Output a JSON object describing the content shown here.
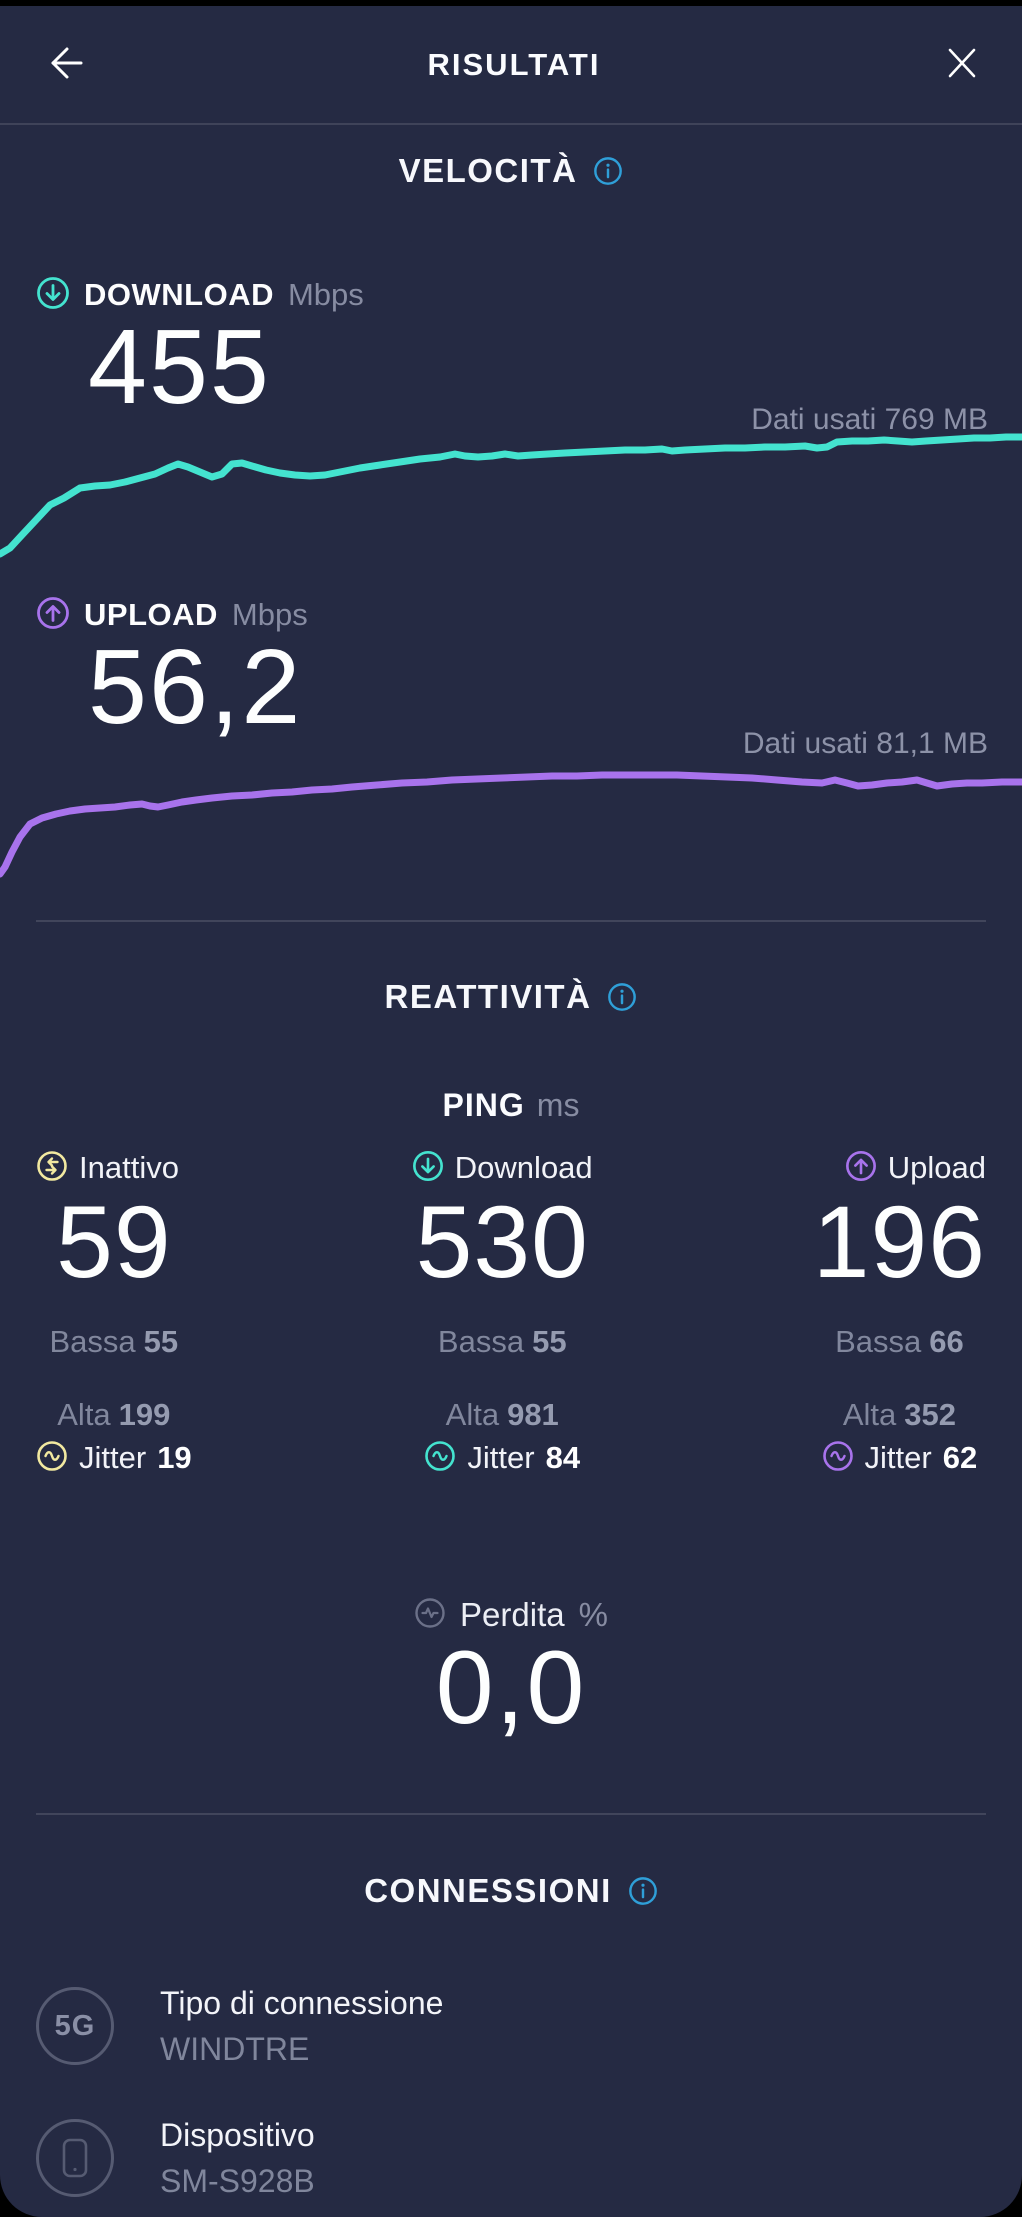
{
  "header": {
    "title": "RISULTATI"
  },
  "velocita": {
    "heading": "VELOCITÀ",
    "download": {
      "label": "DOWNLOAD",
      "unit": "Mbps",
      "value": "455",
      "data_used": "Dati usati 769 MB"
    },
    "upload": {
      "label": "UPLOAD",
      "unit": "Mbps",
      "value": "56,2",
      "data_used": "Dati usati 81,1 MB"
    }
  },
  "reattivita": {
    "heading": "REATTIVITÀ",
    "ping_label": "PING",
    "ping_unit": "ms",
    "columns": [
      {
        "label": "Inattivo",
        "value": "59",
        "bassa_label": "Bassa",
        "bassa_value": "55",
        "alta_label": "Alta",
        "alta_value": "199",
        "jitter_label": "Jitter",
        "jitter_value": "19"
      },
      {
        "label": "Download",
        "value": "530",
        "bassa_label": "Bassa",
        "bassa_value": "55",
        "alta_label": "Alta",
        "alta_value": "981",
        "jitter_label": "Jitter",
        "jitter_value": "84"
      },
      {
        "label": "Upload",
        "value": "196",
        "bassa_label": "Bassa",
        "bassa_value": "66",
        "alta_label": "Alta",
        "alta_value": "352",
        "jitter_label": "Jitter",
        "jitter_value": "62"
      }
    ],
    "perdita": {
      "label": "Perdita",
      "unit": "%",
      "value": "0,0"
    }
  },
  "connessioni": {
    "heading": "CONNESSIONI",
    "rows": [
      {
        "badge": "5G",
        "title": "Tipo di connessione",
        "subtitle": "WINDTRE"
      },
      {
        "badge": "phone-icon",
        "title": "Dispositivo",
        "subtitle": "SM-S928B"
      }
    ]
  },
  "colors": {
    "background": "#252a43",
    "teal": "#44e3cf",
    "purple": "#a873ec",
    "yellow": "#f2e9a0",
    "info_blue": "#2f9fd8",
    "gray_text": "#878ca2"
  },
  "chart_data": [
    {
      "type": "line",
      "name": "download-speed-over-time",
      "title": "DOWNLOAD Mbps",
      "final_value_mbps": 455,
      "data_used_label": "Dati usati 769 MB",
      "color": "#44e3cf",
      "axes": "hidden",
      "points": [
        [
          0,
          121
        ],
        [
          10,
          115
        ],
        [
          22,
          102
        ],
        [
          36,
          87
        ],
        [
          50,
          72
        ],
        [
          64,
          65
        ],
        [
          80,
          55
        ],
        [
          95,
          53
        ],
        [
          110,
          52
        ],
        [
          125,
          49
        ],
        [
          140,
          45
        ],
        [
          155,
          41
        ],
        [
          168,
          35
        ],
        [
          178,
          31
        ],
        [
          188,
          34
        ],
        [
          200,
          39
        ],
        [
          212,
          44
        ],
        [
          222,
          41
        ],
        [
          232,
          31
        ],
        [
          242,
          30
        ],
        [
          252,
          33
        ],
        [
          266,
          37
        ],
        [
          280,
          40
        ],
        [
          295,
          42
        ],
        [
          310,
          43
        ],
        [
          325,
          42
        ],
        [
          340,
          39
        ],
        [
          360,
          35
        ],
        [
          380,
          32
        ],
        [
          400,
          29
        ],
        [
          420,
          26
        ],
        [
          440,
          24
        ],
        [
          455,
          21
        ],
        [
          465,
          23
        ],
        [
          478,
          24
        ],
        [
          492,
          23
        ],
        [
          505,
          21
        ],
        [
          518,
          23
        ],
        [
          532,
          22
        ],
        [
          548,
          21
        ],
        [
          565,
          20
        ],
        [
          585,
          19
        ],
        [
          605,
          18
        ],
        [
          625,
          17
        ],
        [
          645,
          17
        ],
        [
          662,
          16
        ],
        [
          672,
          18
        ],
        [
          685,
          17
        ],
        [
          705,
          16
        ],
        [
          725,
          15
        ],
        [
          745,
          15
        ],
        [
          765,
          14
        ],
        [
          785,
          14
        ],
        [
          805,
          13
        ],
        [
          817,
          15
        ],
        [
          827,
          14
        ],
        [
          837,
          9
        ],
        [
          852,
          8
        ],
        [
          868,
          8
        ],
        [
          884,
          7
        ],
        [
          898,
          8
        ],
        [
          912,
          9
        ],
        [
          926,
          8
        ],
        [
          942,
          7
        ],
        [
          958,
          6
        ],
        [
          974,
          5
        ],
        [
          990,
          5
        ],
        [
          1006,
          4
        ],
        [
          1022,
          4
        ]
      ]
    },
    {
      "type": "line",
      "name": "upload-speed-over-time",
      "title": "UPLOAD Mbps",
      "final_value_mbps": 56.2,
      "data_used_label": "Dati usati 81,1 MB",
      "color": "#a873ec",
      "axes": "hidden",
      "points": [
        [
          0,
          117
        ],
        [
          5,
          110
        ],
        [
          12,
          95
        ],
        [
          20,
          80
        ],
        [
          30,
          67
        ],
        [
          42,
          61
        ],
        [
          56,
          57
        ],
        [
          70,
          54
        ],
        [
          85,
          52
        ],
        [
          100,
          51
        ],
        [
          115,
          50
        ],
        [
          130,
          48
        ],
        [
          142,
          47
        ],
        [
          150,
          49
        ],
        [
          158,
          50
        ],
        [
          168,
          48
        ],
        [
          182,
          45
        ],
        [
          196,
          43
        ],
        [
          212,
          41
        ],
        [
          232,
          39
        ],
        [
          252,
          38
        ],
        [
          272,
          36
        ],
        [
          292,
          35
        ],
        [
          312,
          33
        ],
        [
          332,
          32
        ],
        [
          352,
          30
        ],
        [
          377,
          28
        ],
        [
          402,
          26
        ],
        [
          427,
          25
        ],
        [
          452,
          23
        ],
        [
          477,
          22
        ],
        [
          502,
          21
        ],
        [
          527,
          20
        ],
        [
          552,
          19
        ],
        [
          577,
          19
        ],
        [
          602,
          18
        ],
        [
          627,
          18
        ],
        [
          652,
          18
        ],
        [
          677,
          18
        ],
        [
          702,
          19
        ],
        [
          727,
          20
        ],
        [
          752,
          21
        ],
        [
          777,
          23
        ],
        [
          802,
          25
        ],
        [
          822,
          26
        ],
        [
          835,
          23
        ],
        [
          847,
          26
        ],
        [
          858,
          29
        ],
        [
          872,
          28
        ],
        [
          887,
          26
        ],
        [
          902,
          25
        ],
        [
          917,
          23
        ],
        [
          927,
          26
        ],
        [
          937,
          29
        ],
        [
          952,
          27
        ],
        [
          967,
          26
        ],
        [
          982,
          26
        ],
        [
          1002,
          25
        ],
        [
          1022,
          25
        ]
      ]
    }
  ]
}
